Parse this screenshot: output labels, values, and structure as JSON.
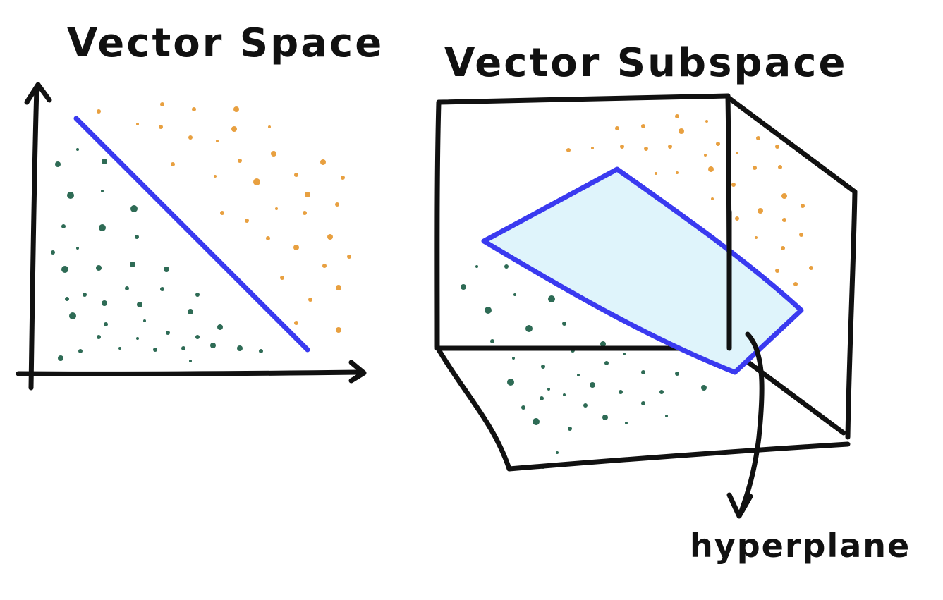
{
  "left_panel": {
    "title": "Vector Space"
  },
  "right_panel": {
    "title": "Vector Subspace",
    "annotation": "hyperplane"
  },
  "colors": {
    "class_a": "#2e6b55",
    "class_b": "#e8a040",
    "boundary": "#3a3af0",
    "plane_fill": "#dff4fb",
    "ink": "#111111"
  }
}
